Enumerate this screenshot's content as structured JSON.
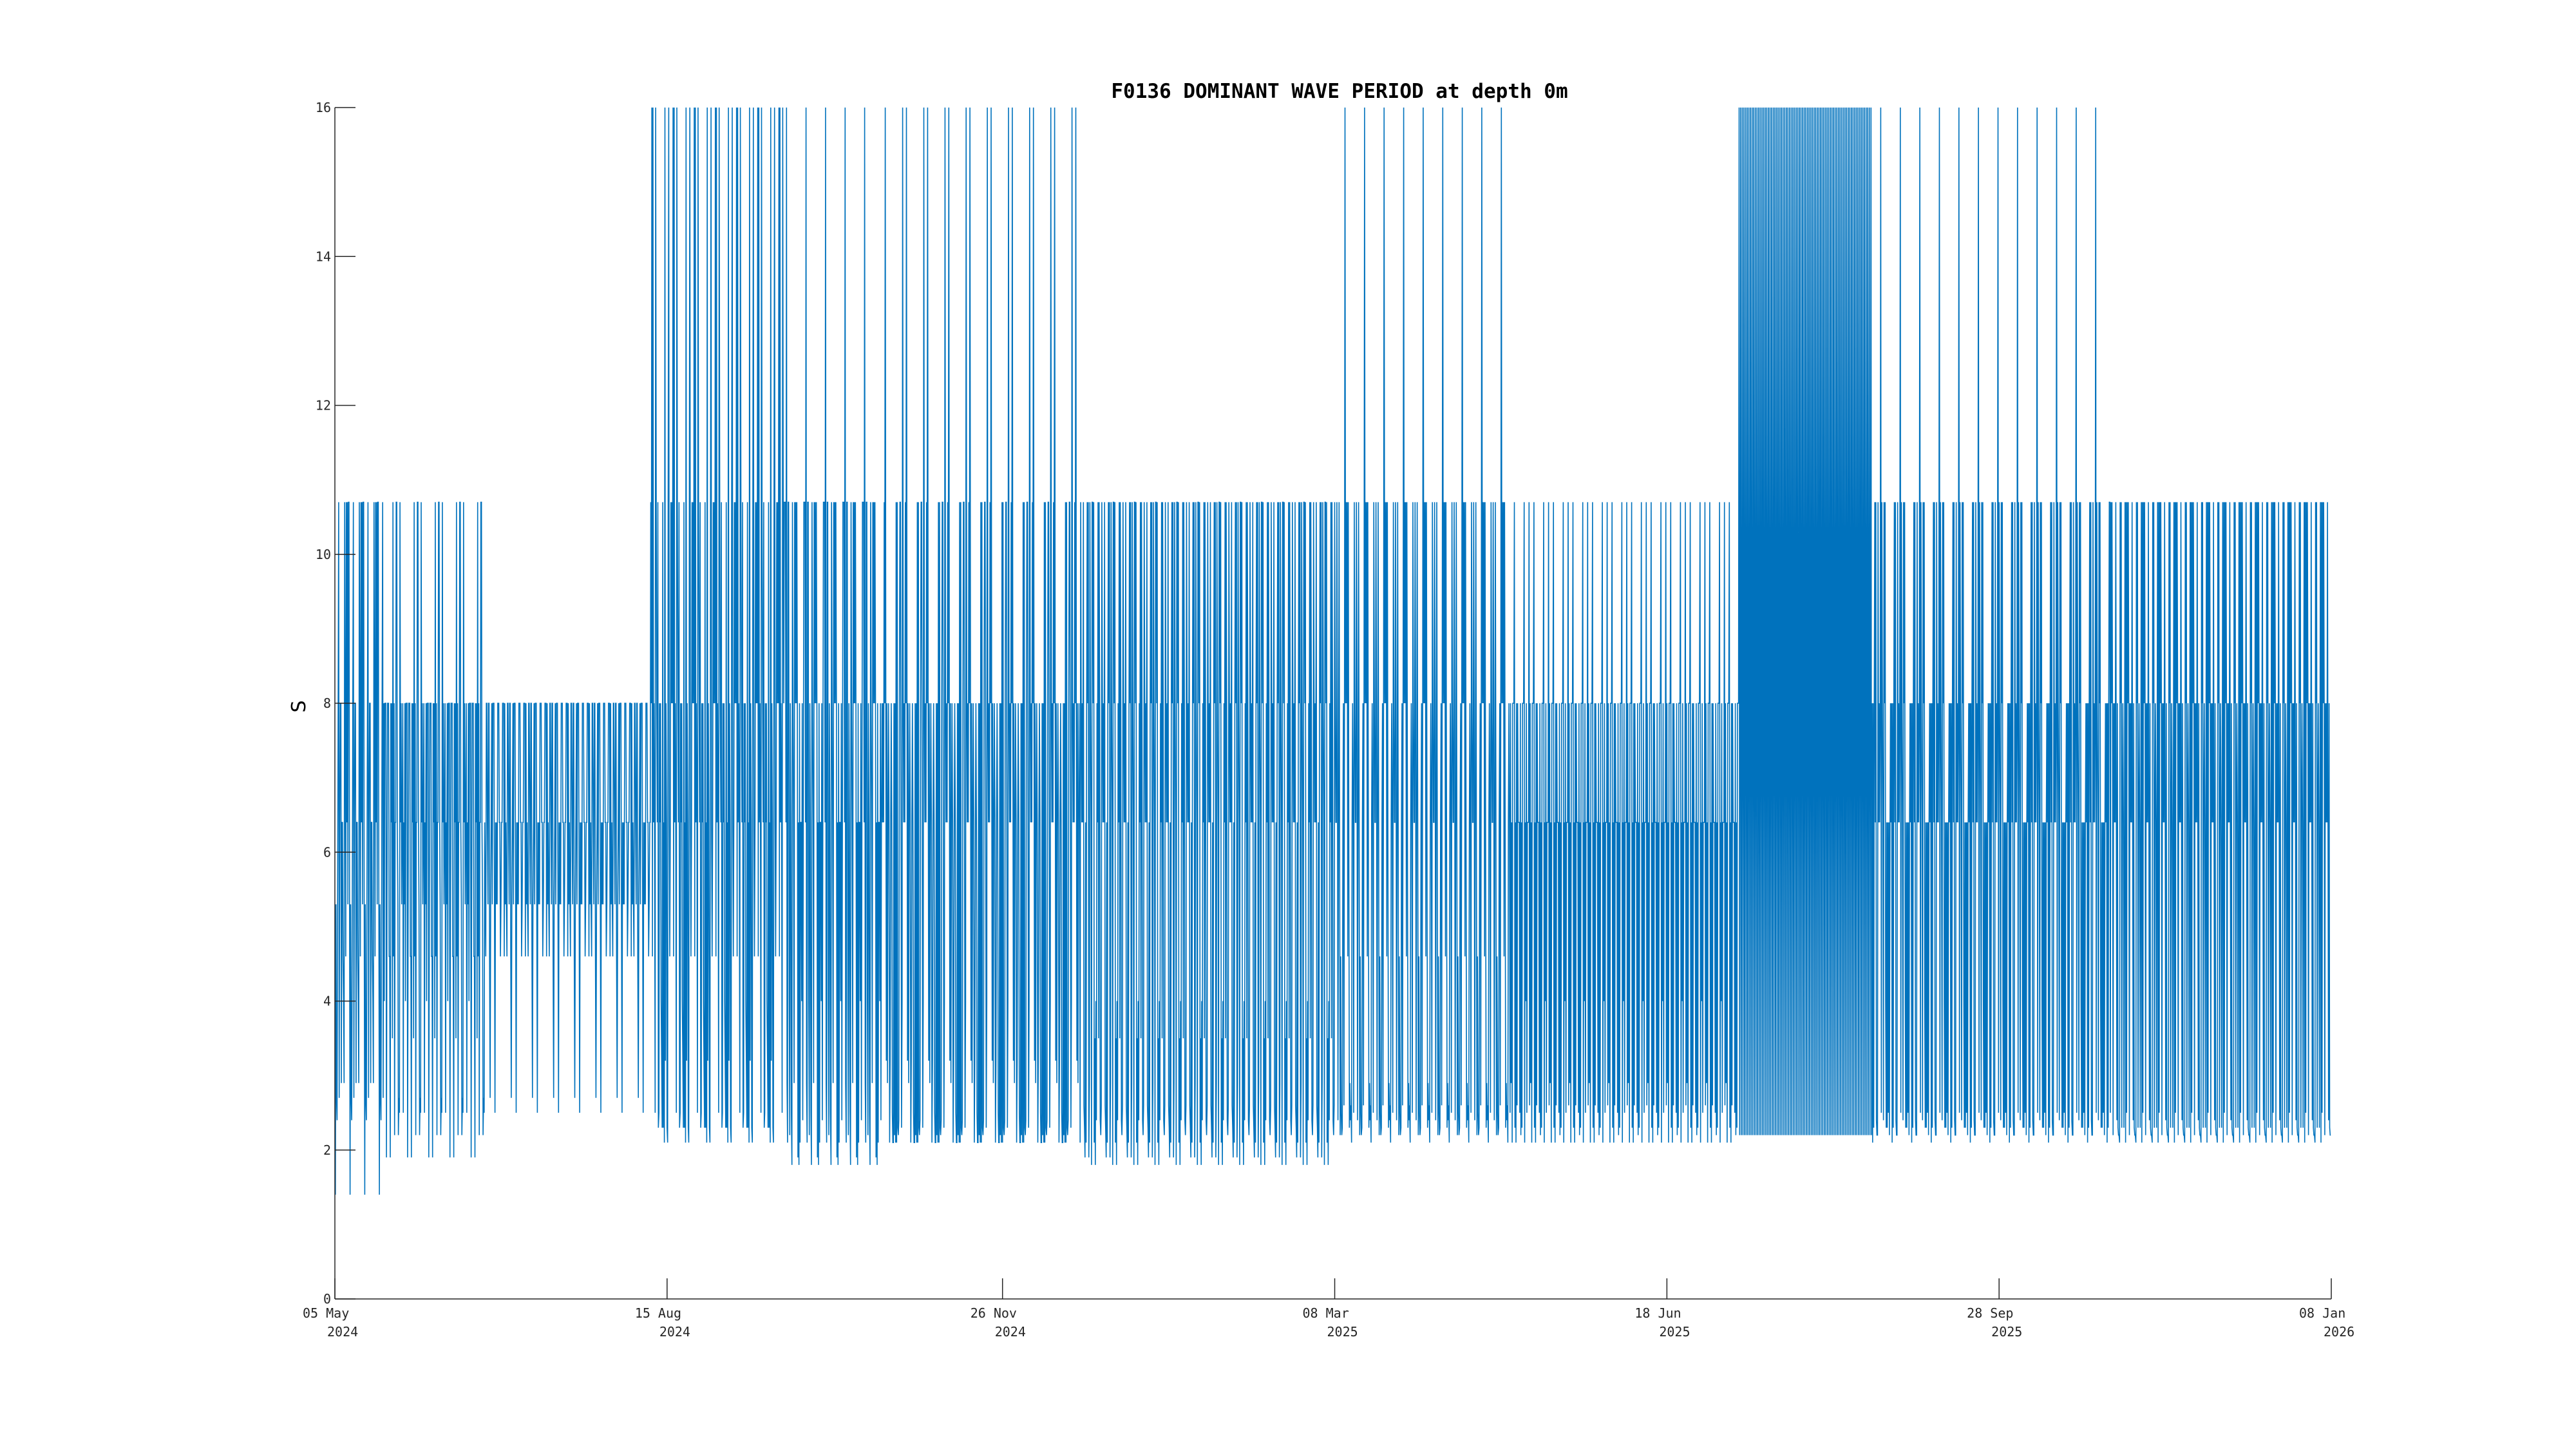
{
  "chart_data": {
    "type": "line",
    "title": "F0136 DOMINANT WAVE PERIOD at depth 0m",
    "xlabel": "",
    "ylabel": "S",
    "xlim": [
      "2024-05-05",
      "2026-01-08"
    ],
    "ylim": [
      0,
      16
    ],
    "grid": false,
    "legend": "none",
    "color": "#0072BD",
    "y_ticks": [
      0,
      2,
      4,
      6,
      8,
      10,
      12,
      14,
      16
    ],
    "y_tick_labels": [
      "0",
      "2",
      "4",
      "6",
      "8",
      "10",
      "12",
      "14",
      "16"
    ],
    "x_ticks": [
      {
        "date": "2024-05-05",
        "day": "05 May",
        "year": "2024"
      },
      {
        "date": "2024-08-15",
        "day": "15 Aug",
        "year": "2024"
      },
      {
        "date": "2024-11-26",
        "day": "26 Nov",
        "year": "2024"
      },
      {
        "date": "2025-03-08",
        "day": "08 Mar",
        "year": "2025"
      },
      {
        "date": "2025-06-18",
        "day": "18 Jun",
        "year": "2025"
      },
      {
        "date": "2025-09-28",
        "day": "28 Sep",
        "year": "2025"
      },
      {
        "date": "2026-01-08",
        "day": "08 Jan",
        "year": "2026"
      }
    ],
    "series": [
      {
        "values_per_segment": {
          "2024-05-05/2024-05-20": [
            5.3,
            8,
            4.6,
            10.7,
            2.7,
            6.4,
            10.7,
            1.4,
            8,
            4,
            10.7,
            2.4,
            6.4,
            8,
            5.3,
            10.7,
            2.9,
            6.4
          ],
          "2024-05-20/2024-06-20": [
            8,
            6.4,
            4.6,
            8,
            2.5,
            6.4,
            8,
            4,
            5.3,
            8,
            1.9,
            6.4,
            10.7,
            3.5,
            8,
            6.4,
            2.2,
            8,
            5.3,
            6.4,
            10.7,
            4.6,
            8,
            2.7,
            6.4,
            8
          ],
          "2024-06-20/2024-08-10": [
            6.4,
            8,
            5.3,
            8,
            4.6,
            6.4,
            8,
            5.3,
            8,
            2.5,
            6.4,
            8,
            5.3,
            8,
            4.6,
            8,
            6.4,
            8,
            5.3,
            6.4,
            8,
            2.7,
            8,
            6.4,
            5.3,
            8
          ],
          "2024-08-10/2024-09-20": [
            10.7,
            2.1,
            8,
            16,
            6.4,
            10.7,
            2.5,
            8,
            16,
            4,
            6.4,
            10.7,
            2.3,
            8,
            16,
            6.4,
            3.2,
            10.7,
            8,
            2.1,
            6.4,
            10.7,
            4.6,
            8,
            2.3,
            6.4
          ],
          "2024-09-20/2024-10-20": [
            10.7,
            2.2,
            8,
            10.7,
            6.4,
            16,
            1.8,
            10.7,
            8,
            2.4,
            10.7,
            6.4,
            2.9,
            8,
            10.7,
            1.9,
            6.4,
            8,
            4,
            10.7,
            2.1,
            8,
            6.4,
            2.5
          ],
          "2024-10-20/2024-12-20": [
            8,
            2.1,
            6.4,
            10.7,
            2.3,
            8,
            3.2,
            6.4,
            10.7,
            2.5,
            8,
            4,
            2.2,
            6.4,
            8,
            10.7,
            2.1,
            6.4,
            16,
            2.4,
            8,
            2.9,
            6.4,
            10.7,
            2.1,
            8
          ],
          "2024-12-20/2025-03-08": [
            10.7,
            2.1,
            8,
            6.4,
            2.4,
            10.7,
            1.9,
            8,
            3.5,
            6.4,
            10.7,
            2.2,
            8,
            2.9,
            6.4,
            10.7,
            1.8,
            8,
            2.6,
            6.4,
            10.7,
            2.1,
            8,
            4,
            10.7,
            2.3
          ],
          "2025-03-08/2025-05-01": [
            10.7,
            2.2,
            8,
            6.4,
            2.6,
            10.7,
            2.3,
            8,
            4.6,
            6.4,
            10.7,
            2.1,
            8,
            2.9,
            6.4,
            10.7,
            2.5,
            8,
            6.4,
            16,
            2.4,
            8,
            6.4,
            2.2
          ],
          "2025-05-01/2025-07-10": [
            8,
            2.1,
            6.4,
            10.7,
            2.5,
            8,
            6.4,
            2.9,
            8,
            10.7,
            2.3,
            6.4,
            8,
            4,
            6.4,
            10.7,
            2.6,
            8,
            6.4,
            2.2,
            8,
            6.4,
            2.1,
            8
          ],
          "2025-07-10/2025-08-20": [
            8,
            2.1,
            16,
            6.4,
            10.7,
            2.3,
            8,
            16,
            2.1,
            10.7,
            6.4,
            2.5,
            8,
            10.7,
            2.2,
            6.4,
            10.7,
            2.4,
            8,
            10.7,
            2.1,
            6.4
          ],
          "2025-08-20/2025-11-01": [
            8,
            2.2,
            6.4,
            10.7,
            2.5,
            8,
            6.4,
            2.1,
            10.7,
            8,
            2.4,
            6.4,
            10.7,
            2.3,
            8,
            4,
            6.4,
            10.7,
            2.2,
            8,
            6.4,
            16,
            2.3,
            8
          ],
          "2025-11-01/2026-01-08": [
            10.7,
            2.3,
            8,
            6.4,
            2.2,
            10.7,
            8,
            2.5,
            6.4,
            10.7,
            2.3,
            8,
            2.1,
            6.4,
            10.7,
            2.4,
            8,
            2.2,
            6.4,
            10.7
          ]
        }
      }
    ]
  }
}
